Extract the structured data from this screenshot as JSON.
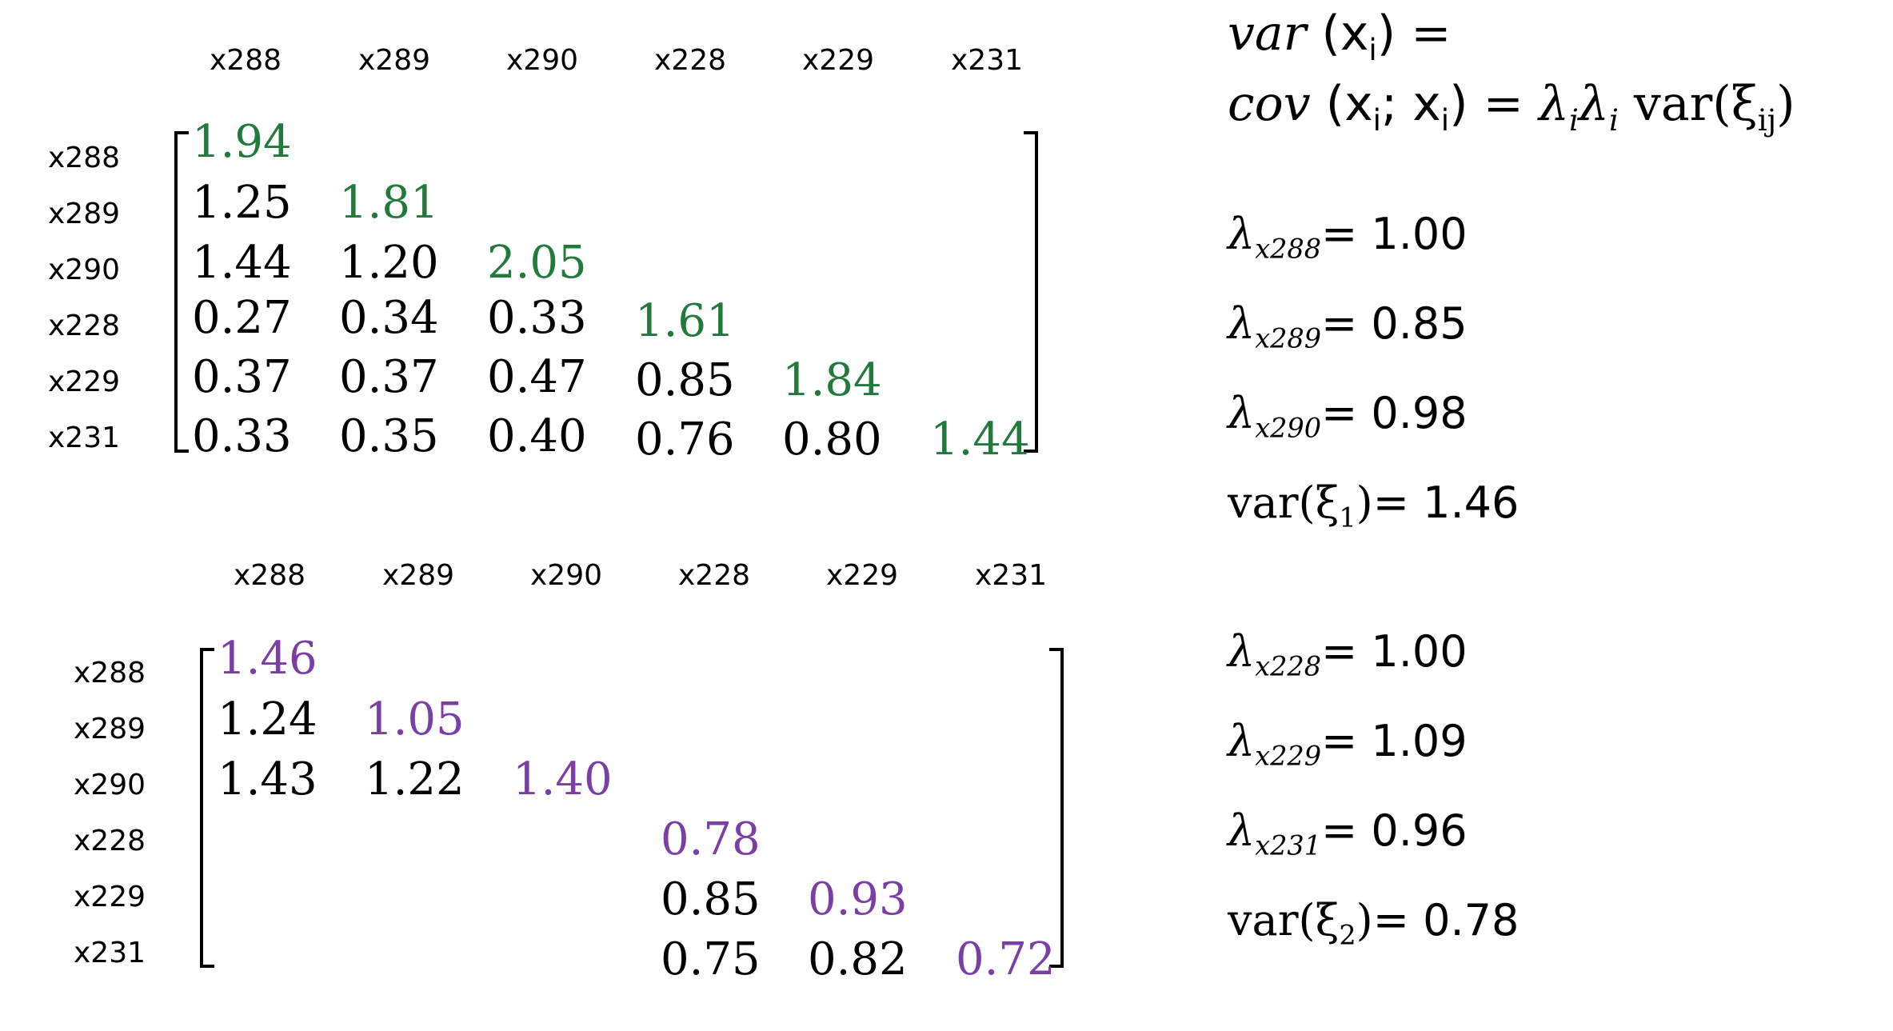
{
  "colors": {
    "diagonal_top": "#217a3c",
    "diagonal_bottom": "#7a3ea6",
    "text": "#000000"
  },
  "top_matrix": {
    "col_headers": [
      "x288",
      "x289",
      "x290",
      "x228",
      "x229",
      "x231"
    ],
    "row_headers": [
      "x288",
      "x289",
      "x290",
      "x228",
      "x229",
      "x231"
    ],
    "rows": [
      [
        "1.94"
      ],
      [
        "1.25",
        "1.81"
      ],
      [
        "1.44",
        "1.20",
        "2.05"
      ],
      [
        "0.27",
        "0.34",
        "0.33",
        "1.61"
      ],
      [
        "0.37",
        "0.37",
        "0.47",
        "0.85",
        "1.84"
      ],
      [
        "0.33",
        "0.35",
        "0.40",
        "0.76",
        "0.80",
        "1.44"
      ]
    ]
  },
  "bottom_matrix": {
    "col_headers": [
      "x288",
      "x289",
      "x290",
      "x228",
      "x229",
      "x231"
    ],
    "row_headers": [
      "x288",
      "x289",
      "x290",
      "x228",
      "x229",
      "x231"
    ],
    "rows": [
      [
        "1.46",
        "",
        "",
        "",
        "",
        ""
      ],
      [
        "1.24",
        "1.05",
        "",
        "",
        "",
        ""
      ],
      [
        "1.43",
        "1.22",
        "1.40",
        "",
        "",
        ""
      ],
      [
        "",
        "",
        "",
        "0.78",
        "",
        ""
      ],
      [
        "",
        "",
        "",
        "0.85",
        "0.93",
        ""
      ],
      [
        "",
        "",
        "",
        "0.75",
        "0.82",
        "0.72"
      ]
    ]
  },
  "formula": {
    "line1": {
      "func": "var",
      "arg_open": "(x",
      "arg_sub": "i",
      "arg_close": ")",
      "equals": "="
    },
    "line2": {
      "func": "cov",
      "arg_open": "(x",
      "arg_sub1": "i",
      "sep": "; x",
      "arg_sub2": "i",
      "arg_close": ")",
      "equals": "=",
      "lambda1": "λ",
      "lambda1_sub": "i",
      "lambda2": "λ",
      "lambda2_sub": "i",
      "var_text": "var(ξ",
      "var_sub": "ij",
      "var_close": ")"
    }
  },
  "factor1": {
    "lambdas": [
      {
        "sym": "λ",
        "sub": "x288",
        "value": "= 1.00"
      },
      {
        "sym": "λ",
        "sub": "x289",
        "value": "= 0.85"
      },
      {
        "sym": "λ",
        "sub": "x290",
        "value": "= 0.98"
      }
    ],
    "var": {
      "text": "var(ξ",
      "sub": "1",
      "close": ")",
      "value": "= 1.46"
    }
  },
  "factor2": {
    "lambdas": [
      {
        "sym": "λ",
        "sub": "x228",
        "value": "= 1.00"
      },
      {
        "sym": "λ",
        "sub": "x229",
        "value": "= 1.09"
      },
      {
        "sym": "λ",
        "sub": "x231",
        "value": "= 0.96"
      }
    ],
    "var": {
      "text": "var(ξ",
      "sub": "2",
      "close": ")",
      "value": "= 0.78"
    }
  }
}
